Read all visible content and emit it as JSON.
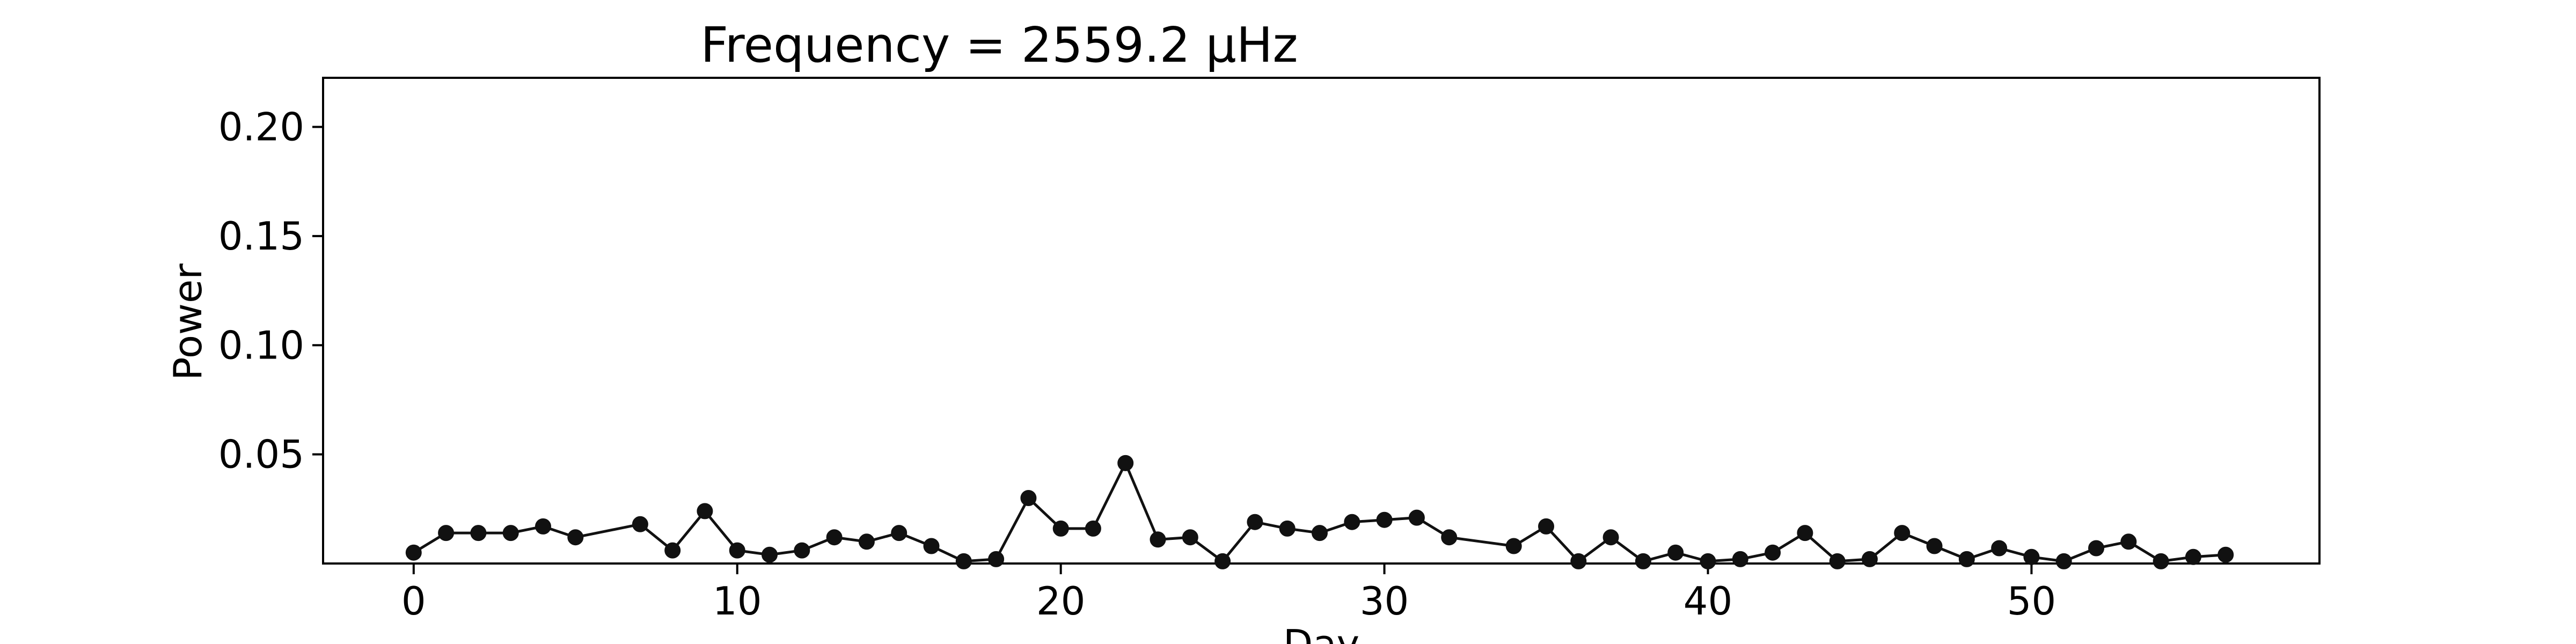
{
  "chart_data": {
    "type": "line",
    "title": "Frequency = 2559.2 μHz",
    "xlabel": "Day",
    "ylabel": "Power",
    "xlim": [
      -2.8,
      58.9
    ],
    "ylim": [
      0.0,
      0.2225
    ],
    "xticks": [
      0,
      10,
      20,
      30,
      40,
      50
    ],
    "xtick_labels": [
      "0",
      "10",
      "20",
      "30",
      "40",
      "50"
    ],
    "yticks": [
      0.05,
      0.1,
      0.15,
      0.2
    ],
    "ytick_labels": [
      "0.05",
      "0.10",
      "0.15",
      "0.20"
    ],
    "grid": false,
    "series": [
      {
        "name": "Power",
        "color": "#111111",
        "marker": "circle",
        "x": [
          0,
          1,
          2,
          3,
          4,
          5,
          7,
          8,
          9,
          10,
          11,
          12,
          13,
          14,
          15,
          16,
          17,
          18,
          19,
          20,
          21,
          22,
          23,
          24,
          25,
          26,
          27,
          28,
          29,
          30,
          31,
          32,
          34,
          35,
          36,
          37,
          38,
          39,
          40,
          41,
          42,
          43,
          44,
          45,
          46,
          47,
          48,
          49,
          50,
          51,
          52,
          53,
          54,
          55,
          56
        ],
        "y": [
          0.005,
          0.014,
          0.014,
          0.014,
          0.017,
          0.012,
          0.018,
          0.006,
          0.024,
          0.006,
          0.004,
          0.006,
          0.012,
          0.01,
          0.014,
          0.008,
          0.001,
          0.002,
          0.03,
          0.016,
          0.016,
          0.046,
          0.011,
          0.012,
          0.001,
          0.019,
          0.016,
          0.014,
          0.019,
          0.02,
          0.021,
          0.012,
          0.008,
          0.017,
          0.001,
          0.012,
          0.001,
          0.005,
          0.001,
          0.002,
          0.005,
          0.014,
          0.001,
          0.002,
          0.014,
          0.008,
          0.002,
          0.007,
          0.003,
          0.001,
          0.007,
          0.01,
          0.001,
          0.003,
          0.004
        ]
      }
    ]
  }
}
